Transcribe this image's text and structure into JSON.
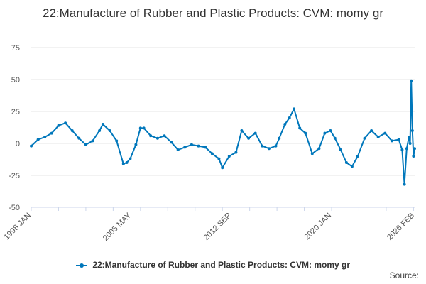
{
  "chart_data": {
    "type": "line",
    "title": "22:Manufacture of Rubber and Plastic Products: CVM: momy gr",
    "xlabel": "",
    "ylabel": "",
    "x_range": [
      "1998-01",
      "2026-02"
    ],
    "ylim": [
      -50,
      75
    ],
    "yticks": [
      75,
      50,
      25,
      0,
      -25,
      -50
    ],
    "xtick_labels": [
      "1998 JAN",
      "2005 MAY",
      "2012 SEP",
      "2020 JAN",
      "2026 FEB"
    ],
    "grid": "horizontal",
    "legend_position": "bottom",
    "colors": {
      "series": "#0077bb"
    },
    "series": [
      {
        "name": "22:Manufacture of Rubber and Plastic Products: CVM: momy gr",
        "points": [
          [
            "1998-01",
            -2
          ],
          [
            "1998-07",
            3
          ],
          [
            "1999-01",
            5
          ],
          [
            "1999-07",
            8
          ],
          [
            "2000-01",
            14
          ],
          [
            "2000-07",
            16
          ],
          [
            "2001-01",
            10
          ],
          [
            "2001-07",
            4
          ],
          [
            "2002-01",
            -1
          ],
          [
            "2002-07",
            2
          ],
          [
            "2003-01",
            10
          ],
          [
            "2003-04",
            15
          ],
          [
            "2003-10",
            10
          ],
          [
            "2004-04",
            2
          ],
          [
            "2004-10",
            -16
          ],
          [
            "2005-01",
            -15
          ],
          [
            "2005-04",
            -12
          ],
          [
            "2005-09",
            -1
          ],
          [
            "2006-01",
            12
          ],
          [
            "2006-04",
            12
          ],
          [
            "2006-10",
            6
          ],
          [
            "2007-04",
            4
          ],
          [
            "2007-10",
            6
          ],
          [
            "2008-04",
            1
          ],
          [
            "2008-10",
            -5
          ],
          [
            "2009-04",
            -3
          ],
          [
            "2009-10",
            -1
          ],
          [
            "2010-04",
            -2
          ],
          [
            "2010-10",
            -3
          ],
          [
            "2011-04",
            -8
          ],
          [
            "2011-10",
            -12
          ],
          [
            "2012-01",
            -19
          ],
          [
            "2012-07",
            -10
          ],
          [
            "2013-01",
            -7
          ],
          [
            "2013-06",
            10
          ],
          [
            "2013-12",
            4
          ],
          [
            "2014-06",
            8
          ],
          [
            "2014-12",
            -2
          ],
          [
            "2015-06",
            -4
          ],
          [
            "2015-12",
            -2
          ],
          [
            "2016-03",
            4
          ],
          [
            "2016-08",
            15
          ],
          [
            "2016-12",
            20
          ],
          [
            "2017-04",
            27
          ],
          [
            "2017-09",
            12
          ],
          [
            "2018-02",
            8
          ],
          [
            "2018-08",
            -8
          ],
          [
            "2019-02",
            -4
          ],
          [
            "2019-07",
            8
          ],
          [
            "2019-12",
            10
          ],
          [
            "2020-04",
            4
          ],
          [
            "2020-09",
            -5
          ],
          [
            "2021-02",
            -15
          ],
          [
            "2021-07",
            -18
          ],
          [
            "2021-12",
            -10
          ],
          [
            "2022-06",
            4
          ],
          [
            "2022-12",
            10
          ],
          [
            "2023-06",
            5
          ],
          [
            "2023-12",
            8
          ],
          [
            "2024-06",
            2
          ],
          [
            "2024-12",
            3
          ],
          [
            "2025-03",
            -5
          ],
          [
            "2025-05",
            -32
          ],
          [
            "2025-07",
            -4
          ],
          [
            "2025-09",
            5
          ],
          [
            "2025-10",
            0
          ],
          [
            "2025-11",
            49
          ],
          [
            "2025-12",
            10
          ],
          [
            "2026-01",
            -10
          ],
          [
            "2026-02",
            -4
          ]
        ]
      }
    ]
  },
  "source_label": "Source:"
}
